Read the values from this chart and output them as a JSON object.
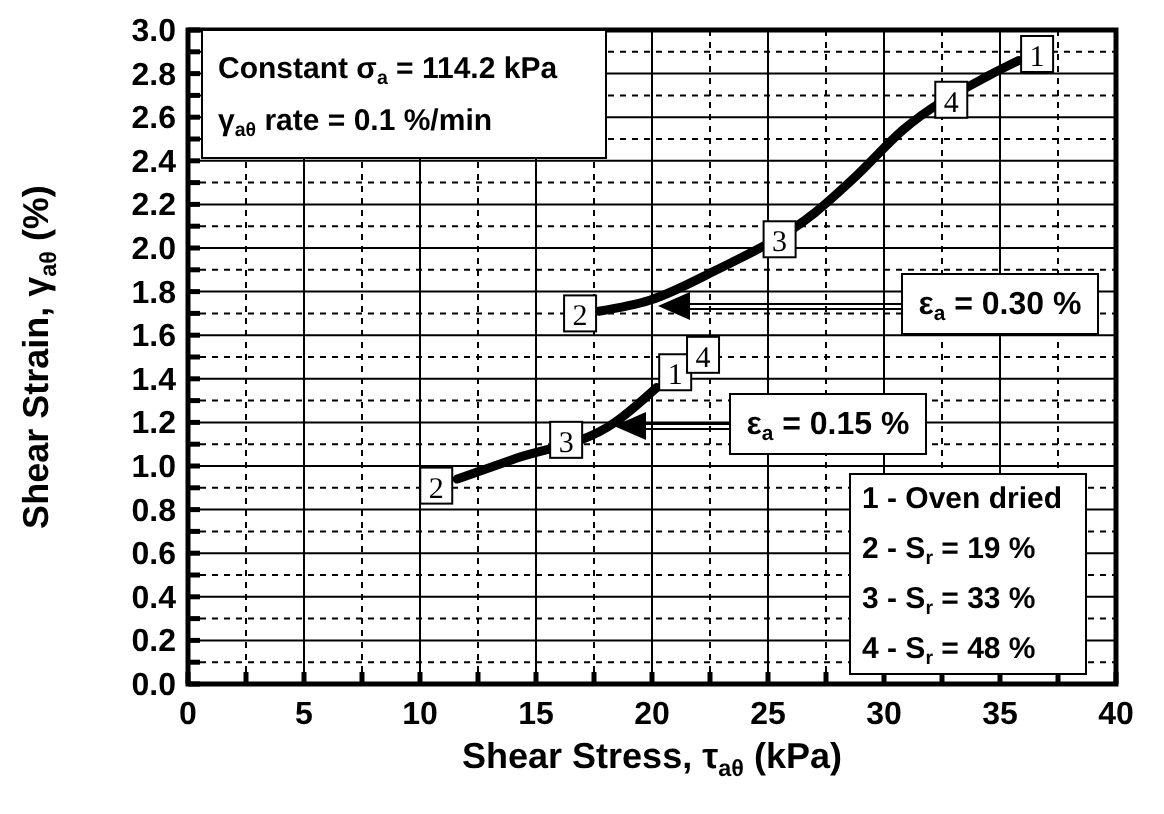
{
  "chart_data": {
    "type": "line",
    "xlabel": "Shear Stress, τ$_{aθ}$ (kPa)",
    "ylabel": "Shear Strain, γ$_{aθ}$ (%)",
    "xlim": [
      0,
      40
    ],
    "xticks": [
      0,
      5,
      10,
      15,
      20,
      25,
      30,
      35,
      40
    ],
    "ylim": [
      0,
      3
    ],
    "yticks": [
      {
        "value": 0,
        "label": "0.0"
      },
      0.2,
      0.4,
      0.6,
      0.8,
      {
        "value": 1,
        "label": "1.0"
      },
      1.2,
      1.4,
      1.6,
      1.8,
      {
        "value": 2,
        "label": "2.0"
      },
      2.2,
      2.4,
      2.6,
      2.8,
      {
        "value": 3,
        "label": "3.0"
      }
    ],
    "grid": true,
    "marker": "none",
    "line_style": "solid",
    "series": [
      {
        "color": "#000000",
        "x": [
          17.7,
          19.9,
          22.6,
          27.0,
          28.8,
          30.8,
          34.5,
          35.8
        ],
        "values": [
          1.71,
          1.76,
          1.89,
          2.16,
          2.33,
          2.54,
          2.79,
          2.86
        ]
      },
      {
        "color": "#000000",
        "x": [
          11.6,
          14.0,
          18.4,
          20.2
        ],
        "values": [
          0.94,
          1.03,
          1.2,
          1.36
        ]
      }
    ],
    "annotations": [
      "Constant σ$_{a}$ = 114.2 kPa",
      "γ$_{aθ}$ rate = 0.1 %/min",
      "1 - Oven dried",
      "2 - S$_{r}$ = 19 %",
      "3 - S$_{r}$ = 33 %",
      "4 - S$_{r}$ = 48 %",
      {
        "text": "1",
        "x": 36.6,
        "y": 2.89
      },
      {
        "text": "4",
        "x": 32.9,
        "y": 2.68
      },
      {
        "text": "3",
        "x": 25.5,
        "y": 2.04
      },
      {
        "text": "2",
        "x": 16.9,
        "y": 1.7
      },
      {
        "text": "1",
        "x": 21.0,
        "y": 1.43
      },
      {
        "text": "4",
        "x": 22.2,
        "y": 1.51
      },
      {
        "text": "3",
        "x": 16.3,
        "y": 1.12
      },
      {
        "text": "2",
        "x": 10.7,
        "y": 0.91
      },
      "ε$_{a}$ = 0.30 %",
      "ε$_{a}$ = 0.15 %"
    ]
  }
}
